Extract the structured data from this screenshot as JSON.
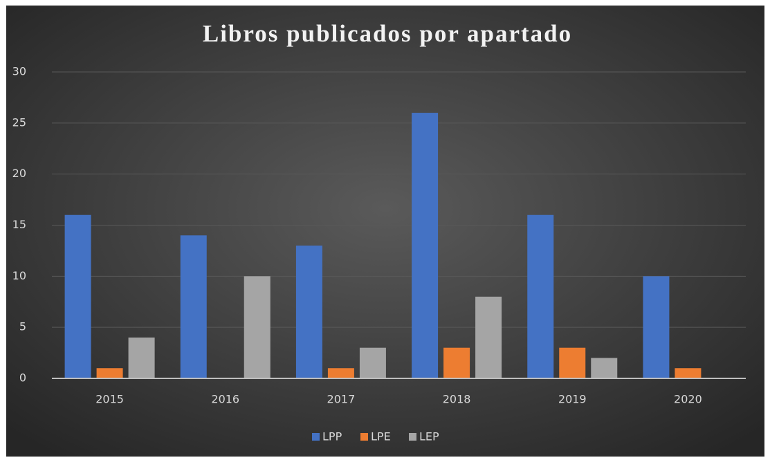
{
  "chart_data": {
    "type": "bar",
    "title": "Libros publicados por apartado",
    "categories": [
      "2015",
      "2016",
      "2017",
      "2018",
      "2019",
      "2020"
    ],
    "series": [
      {
        "name": "LPP",
        "color": "#4472c4",
        "values": [
          16,
          14,
          13,
          26,
          16,
          10
        ]
      },
      {
        "name": "LPE",
        "color": "#ed7d31",
        "values": [
          1,
          0,
          1,
          3,
          3,
          1
        ]
      },
      {
        "name": "LEP",
        "color": "#a5a5a5",
        "values": [
          4,
          10,
          3,
          8,
          2,
          0
        ]
      }
    ],
    "ylim": [
      0,
      30
    ],
    "yticks": [
      0,
      5,
      10,
      15,
      20,
      25,
      30
    ],
    "grid": true,
    "legend": "bottom"
  }
}
